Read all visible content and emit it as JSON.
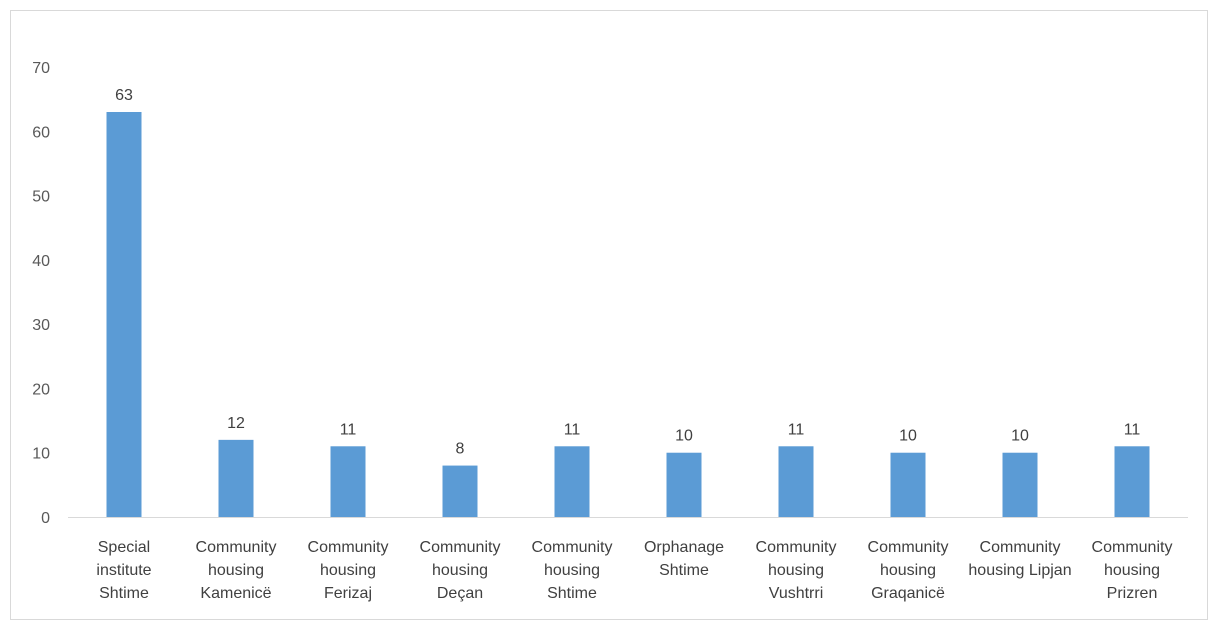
{
  "chart_data": {
    "type": "bar",
    "title": "",
    "xlabel": "",
    "ylabel": "",
    "ylim": [
      0,
      70
    ],
    "yticks": [
      0,
      10,
      20,
      30,
      40,
      50,
      60,
      70
    ],
    "grid": false,
    "legend": "none",
    "bar_color": "#5b9bd5",
    "categories": [
      [
        "Special",
        "institute",
        "Shtime"
      ],
      [
        "Community",
        "housing",
        "Kamenicë"
      ],
      [
        "Community",
        "housing",
        "Ferizaj"
      ],
      [
        "Community",
        "housing",
        "Deçan"
      ],
      [
        "Community",
        "housing",
        "Shtime"
      ],
      [
        "Orphanage",
        "Shtime"
      ],
      [
        "Community",
        "housing",
        "Vushtrri"
      ],
      [
        "Community",
        "housing",
        "Graqanicë"
      ],
      [
        "Community",
        "housing Lipjan"
      ],
      [
        "Community",
        "housing",
        "Prizren"
      ]
    ],
    "values": [
      63,
      12,
      11,
      8,
      11,
      10,
      11,
      10,
      10,
      11
    ]
  }
}
